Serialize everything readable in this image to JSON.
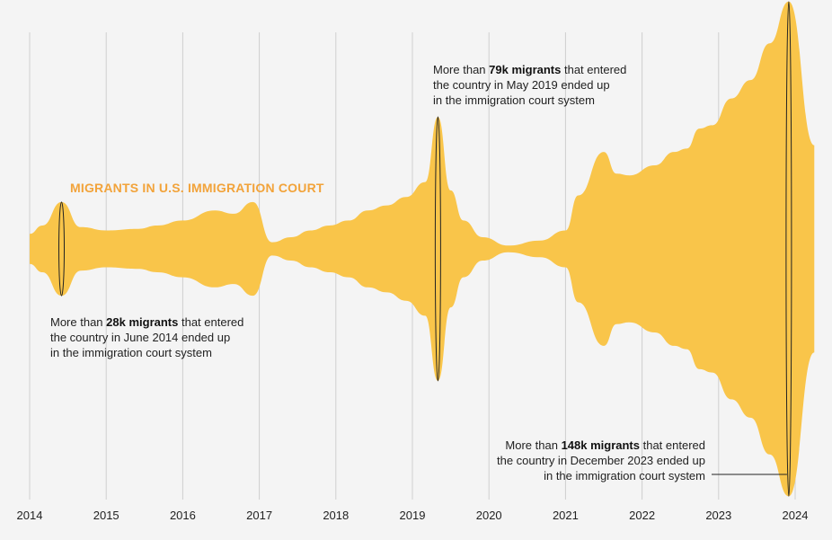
{
  "chart_data": {
    "type": "area",
    "title": "",
    "series_label": "MIGRANTS IN U.S. IMMIGRATION COURT",
    "xlabel": "",
    "ylabel": "",
    "x_ticks": [
      "2014",
      "2015",
      "2016",
      "2017",
      "2018",
      "2019",
      "2020",
      "2021",
      "2022",
      "2023",
      "2024"
    ],
    "fill_color": "#f9c54a",
    "grid": true,
    "style": "symmetric streamgraph (monthly values, mirrored around center)",
    "series": [
      {
        "name": "Migrants in U.S. immigration court",
        "x": [
          "2014-01",
          "2014-03",
          "2014-06",
          "2014-09",
          "2015-01",
          "2015-06",
          "2015-09",
          "2016-01",
          "2016-06",
          "2016-09",
          "2016-12",
          "2017-03",
          "2017-06",
          "2017-09",
          "2017-12",
          "2018-03",
          "2018-06",
          "2018-09",
          "2018-12",
          "2019-03",
          "2019-05",
          "2019-07",
          "2019-09",
          "2019-12",
          "2020-04",
          "2020-09",
          "2021-01",
          "2021-03",
          "2021-07",
          "2021-09",
          "2021-11",
          "2022-03",
          "2022-06",
          "2022-08",
          "2022-10",
          "2022-12",
          "2023-03",
          "2023-06",
          "2023-09",
          "2023-12",
          "2024-04"
        ],
        "values": [
          9,
          14,
          28,
          13,
          11,
          12,
          14,
          17,
          23,
          21,
          28,
          4,
          7,
          11,
          14,
          17,
          23,
          26,
          31,
          40,
          79,
          35,
          17,
          7,
          2,
          5,
          11,
          32,
          58,
          45,
          44,
          50,
          58,
          60,
          72,
          74,
          90,
          101,
          123,
          148,
          62
        ]
      }
    ]
  },
  "annotations": [
    {
      "prefix": "More than ",
      "bold": "28k migrants",
      "line1_rest": " that entered",
      "line2": "the country in June 2014 ended up",
      "line3": "in the immigration court system"
    },
    {
      "prefix": "More than ",
      "bold": "79k migrants",
      "line1_rest": " that entered",
      "line2": "the country in May 2019 ended up",
      "line3": "in the immigration court system"
    },
    {
      "prefix": "More than ",
      "bold": "148k migrants",
      "line1_rest": " that entered",
      "line2": "the country in December 2023 ended up",
      "line3": "in the immigration court system"
    }
  ]
}
